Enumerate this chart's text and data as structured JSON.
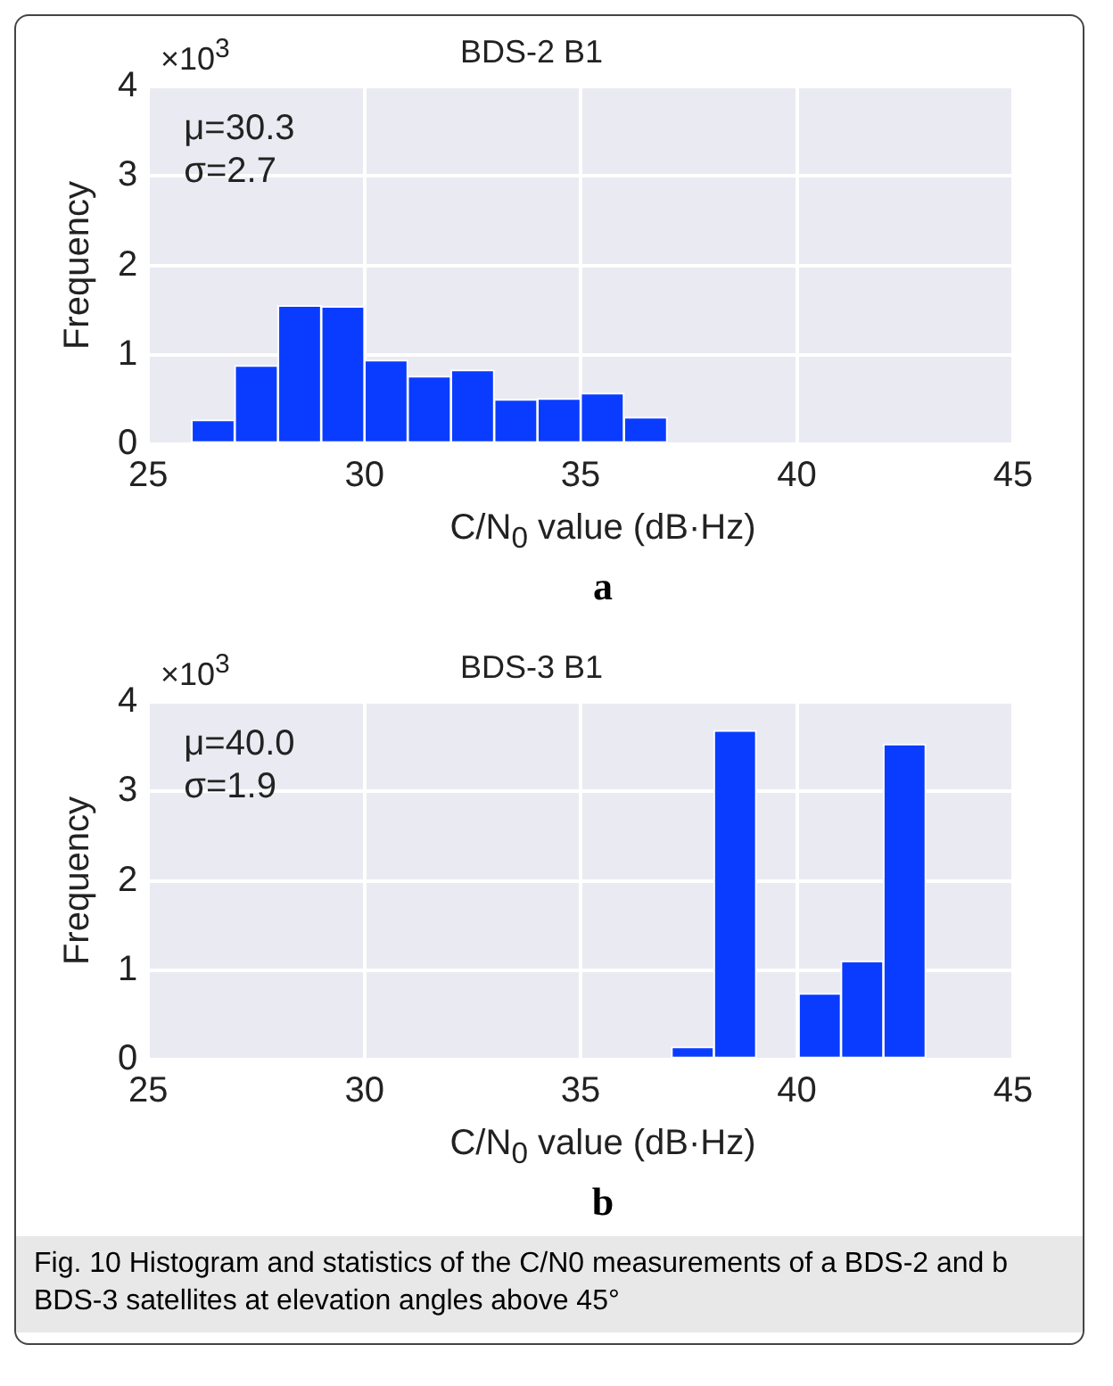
{
  "chart_data": [
    {
      "type": "histogram",
      "title": "BDS-2 B1",
      "xlabel": "C/N$_{0}$ value (dB·Hz)",
      "ylabel": "Frequency",
      "color": "#0a3cff",
      "bins": [
        26,
        27,
        28,
        29,
        30,
        31,
        32,
        33,
        34,
        35,
        36,
        37
      ],
      "values": [
        0.27,
        0.88,
        1.55,
        1.54,
        0.94,
        0.76,
        0.83,
        0.5,
        0.51,
        0.57,
        0.3
      ],
      "xlim": [
        25,
        45
      ],
      "xticks": [
        25,
        30,
        35,
        40,
        45
      ],
      "ylim": [
        0,
        4
      ],
      "yticks": [
        0,
        1,
        2,
        3,
        4
      ],
      "grid": true,
      "annotations": [
        "×10$^{3}$",
        "μ=30.3",
        "σ=2.7",
        "a"
      ]
    },
    {
      "type": "histogram",
      "title": "BDS-3 B1",
      "xlabel": "C/N$_{0}$ value (dB·Hz)",
      "ylabel": "Frequency",
      "color": "#0a3cff",
      "bins": [
        37.1,
        38.08,
        39.06,
        40.04,
        41.02,
        42.0,
        42.98
      ],
      "values": [
        0.14,
        3.68,
        0,
        0.74,
        1.1,
        3.53
      ],
      "xlim": [
        25,
        45
      ],
      "xticks": [
        25,
        30,
        35,
        40,
        45
      ],
      "ylim": [
        0,
        4
      ],
      "yticks": [
        0,
        1,
        2,
        3,
        4
      ],
      "grid": true,
      "annotations": [
        "×10$^{3}$",
        "μ=40.0",
        "σ=1.9",
        "b",
        "Fig. 10  Histogram and statistics of the C/N0 measurements of a BDS-2 and b BDS-3 satellites at elevation angles above 45°"
      ]
    }
  ]
}
